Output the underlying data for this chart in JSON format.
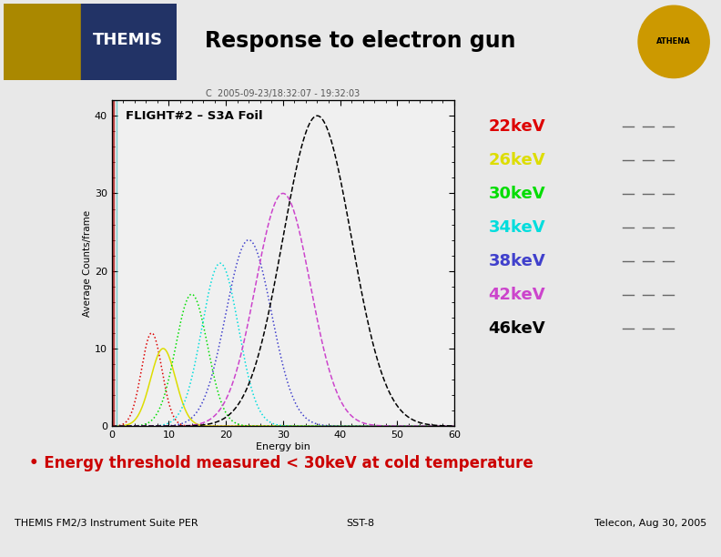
{
  "title": "Response to electron gun",
  "slide_bg": "#e8e8e8",
  "header_bg": "#ffffff",
  "header_line_color": "#000080",
  "plot_title_text": "C  2005-09-23/18:32:07 - 19:32:03",
  "plot_label": "FLIGHT#2 – S3A Foil",
  "xlabel": "Energy bin",
  "ylabel": "Average Counts/frame",
  "xlim": [
    0,
    60
  ],
  "ylim": [
    0,
    42
  ],
  "ytick_vals": [
    0,
    10,
    20,
    30,
    40
  ],
  "ytick_labels": [
    "0",
    "10",
    "20",
    "30",
    "40"
  ],
  "xtick_vals": [
    0,
    10,
    20,
    30,
    40,
    50,
    60
  ],
  "xtick_labels": [
    "0",
    "10",
    "20",
    "30",
    "40",
    "50",
    "60"
  ],
  "bullet_text": "Energy threshold measured < 30keV at cold temperature",
  "footer_left": "THEMIS FM2/3 Instrument Suite PER",
  "footer_center": "SST-8",
  "footer_right": "Telecon, Aug 30, 2005",
  "legend_labels": [
    "22keV",
    "26keV",
    "30keV",
    "34keV",
    "38keV",
    "42keV",
    "46keV"
  ],
  "legend_colors": [
    "#dd0000",
    "#dddd00",
    "#00dd00",
    "#00dddd",
    "#4040cc",
    "#cc44cc",
    "#000000"
  ],
  "curve_peaks": [
    7,
    9,
    14,
    19,
    24,
    30,
    36
  ],
  "curve_widths": [
    1.8,
    2.2,
    2.8,
    3.2,
    4.0,
    4.8,
    6.0
  ],
  "curve_heights": [
    12,
    10,
    17,
    21,
    24,
    30,
    40
  ],
  "curve_styles": [
    "dotted",
    "solid",
    "dotted",
    "dotted",
    "dotted",
    "dashed",
    "dashed"
  ],
  "plot_bg": "#f5f5f5",
  "inner_plot_bg": "#f0f0f0",
  "themis_logo_color": "#334488",
  "athena_logo_color": "#cc9900"
}
